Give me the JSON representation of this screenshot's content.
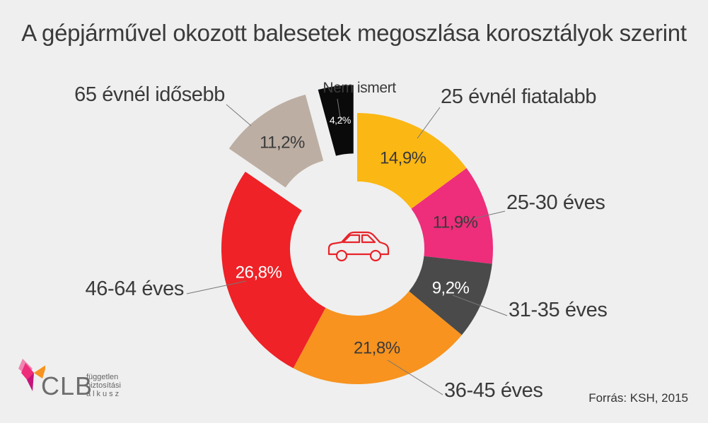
{
  "chart_data": {
    "type": "pie",
    "title": "A gépjárművel okozott balesetek megoszlása korosztályok szerint",
    "slices": [
      {
        "label": "25 évnél fiatalabb",
        "value": 14.9,
        "value_label": "14,9%",
        "color": "#fbb713",
        "text_color": "#3a3a3a"
      },
      {
        "label": "25-30 éves",
        "value": 11.9,
        "value_label": "11,9%",
        "color": "#ee2d7b",
        "text_color": "#3a3a3a"
      },
      {
        "label": "31-35 éves",
        "value": 9.2,
        "value_label": "9,2%",
        "color": "#4a4a4a",
        "text_color": "#ffffff"
      },
      {
        "label": "36-45 éves",
        "value": 21.8,
        "value_label": "21,8%",
        "color": "#f7931e",
        "text_color": "#3a3a3a"
      },
      {
        "label": "46-64 éves",
        "value": 26.8,
        "value_label": "26,8%",
        "color": "#ee2227",
        "text_color": "#ffffff"
      },
      {
        "label": "65 évnél idősebb",
        "value": 11.2,
        "value_label": "11,2%",
        "color": "#bcaea3",
        "text_color": "#3a3a3a",
        "exploded": true
      },
      {
        "label": "Nem ismert",
        "value": 4.2,
        "value_label": "4,2%",
        "color": "#0a0a0a",
        "text_color": "#ffffff",
        "exploded": true
      }
    ],
    "center_icon": "car-icon"
  },
  "source": "Forrás: KSH, 2015",
  "logo": {
    "text": "CLB",
    "sub": [
      "független",
      "biztosítási",
      "alkusz"
    ]
  }
}
